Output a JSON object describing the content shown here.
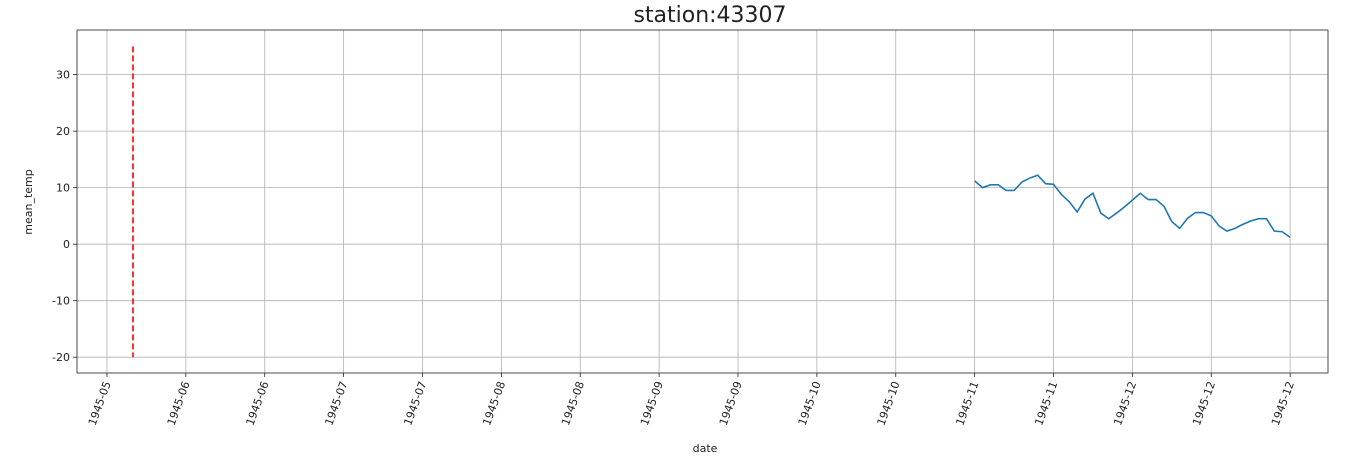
{
  "chart_data": {
    "type": "line",
    "title": "station:43307",
    "x_label": "date",
    "y_label": "mean_temp",
    "xlim": [
      -0.38,
      15.48
    ],
    "ylim": [
      -22.8,
      37.9
    ],
    "xticks": [
      {
        "value": 0,
        "label": "1945-05"
      },
      {
        "value": 1,
        "label": "1945-06"
      },
      {
        "value": 2,
        "label": "1945-06"
      },
      {
        "value": 3,
        "label": "1945-07"
      },
      {
        "value": 4,
        "label": "1945-07"
      },
      {
        "value": 5,
        "label": "1945-08"
      },
      {
        "value": 6,
        "label": "1945-08"
      },
      {
        "value": 7,
        "label": "1945-09"
      },
      {
        "value": 8,
        "label": "1945-09"
      },
      {
        "value": 9,
        "label": "1945-10"
      },
      {
        "value": 10,
        "label": "1945-10"
      },
      {
        "value": 11,
        "label": "1945-11"
      },
      {
        "value": 12,
        "label": "1945-11"
      },
      {
        "value": 13,
        "label": "1945-12"
      },
      {
        "value": 14,
        "label": "1945-12"
      },
      {
        "value": 15,
        "label": "1945-12"
      }
    ],
    "yticks": [
      -20,
      -10,
      0,
      10,
      20,
      30
    ],
    "grid": true,
    "series": [
      {
        "color": "#1f77b4",
        "style": "solid",
        "x": [
          11,
          11.1,
          11.2,
          11.3,
          11.4,
          11.5,
          11.6,
          11.7,
          11.8,
          11.9,
          12,
          12.1,
          12.2,
          12.3,
          12.4,
          12.5,
          12.6,
          12.7,
          12.8,
          12.9,
          13,
          13.1,
          13.2,
          13.3,
          13.4,
          13.5,
          13.6,
          13.7,
          13.8,
          13.9,
          14,
          14.1,
          14.2,
          14.3,
          14.4,
          14.5,
          14.6,
          14.7,
          14.8,
          14.9,
          15
        ],
        "values": [
          11.2,
          10,
          10.5,
          10.5,
          9.5,
          9.5,
          11,
          11.7,
          12.2,
          10.7,
          10.6,
          8.8,
          7.5,
          5.7,
          8,
          9,
          5.5,
          4.5,
          5.5,
          6.6,
          7.8,
          9,
          7.9,
          7.9,
          6.7,
          4,
          2.8,
          4.6,
          5.6,
          5.6,
          5,
          3.2,
          2.3,
          2.8,
          3.5,
          4.1,
          4.5,
          4.5,
          2.3,
          2.2,
          1.2
        ]
      },
      {
        "color": "#ff0000",
        "style": "dashed",
        "x": [
          0.33,
          0.33
        ],
        "values": [
          35,
          -20
        ]
      }
    ]
  }
}
